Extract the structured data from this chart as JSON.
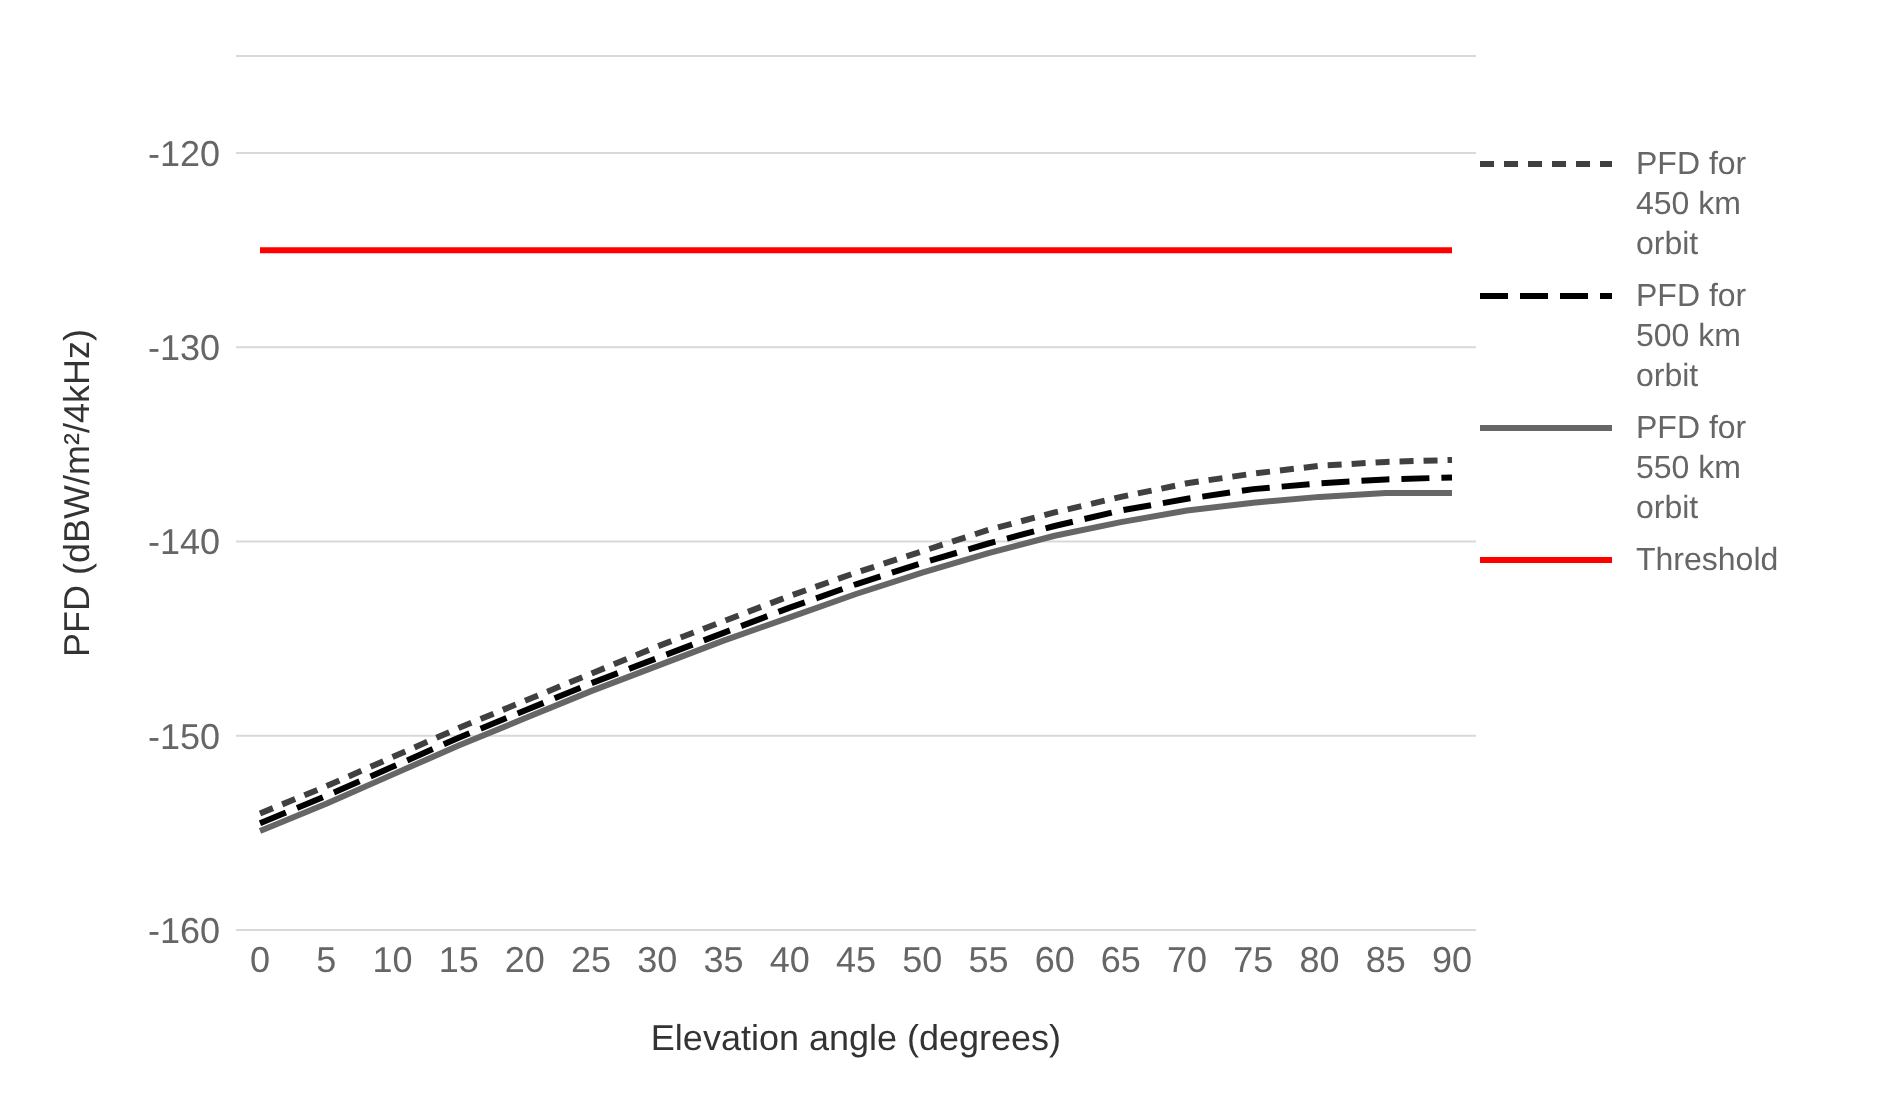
{
  "chart_data": {
    "type": "line",
    "xlabel": "Elevation angle (degrees)",
    "ylabel": "PFD (dBW/m²/4kHz)",
    "categories": [
      "0",
      "5",
      "10",
      "15",
      "20",
      "25",
      "30",
      "35",
      "40",
      "45",
      "50",
      "55",
      "60",
      "65",
      "70",
      "75",
      "80",
      "85",
      "90"
    ],
    "ylim": [
      -160,
      -115
    ],
    "yticks": [
      -160,
      -150,
      -140,
      -130,
      -120
    ],
    "grid": "y",
    "legend": "right",
    "marker": "none",
    "series": [
      {
        "name": "PFD for 450 km orbit",
        "color": "#404040",
        "line_style": "dashed",
        "values": [
          -154,
          -152.6,
          -151.1,
          -149.6,
          -148.2,
          -146.8,
          -145.4,
          -144.1,
          -142.8,
          -141.6,
          -140.5,
          -139.4,
          -138.5,
          -137.7,
          -137.0,
          -136.5,
          -136.1,
          -135.9,
          -135.8
        ]
      },
      {
        "name": "PFD for 500 km orbit",
        "color": "#000000",
        "line_style": "dashed",
        "values": [
          -154.5,
          -153.1,
          -151.6,
          -150.1,
          -148.7,
          -147.3,
          -146.0,
          -144.7,
          -143.4,
          -142.2,
          -141.1,
          -140.1,
          -139.2,
          -138.4,
          -137.8,
          -137.3,
          -137.0,
          -136.8,
          -136.7
        ]
      },
      {
        "name": "PFD for 550 km orbit",
        "color": "#666666",
        "line_style": "solid",
        "values": [
          -154.9,
          -153.5,
          -152.0,
          -150.5,
          -149.1,
          -147.7,
          -146.4,
          -145.1,
          -143.9,
          -142.7,
          -141.6,
          -140.6,
          -139.7,
          -139.0,
          -138.4,
          -138.0,
          -137.7,
          -137.5,
          -137.5
        ]
      },
      {
        "name": "Threshold",
        "color": "#ff0000",
        "line_style": "solid",
        "values": [
          -125,
          -125,
          -125,
          -125,
          -125,
          -125,
          -125,
          -125,
          -125,
          -125,
          -125,
          -125,
          -125,
          -125,
          -125,
          -125,
          -125,
          -125,
          -125
        ]
      }
    ]
  }
}
